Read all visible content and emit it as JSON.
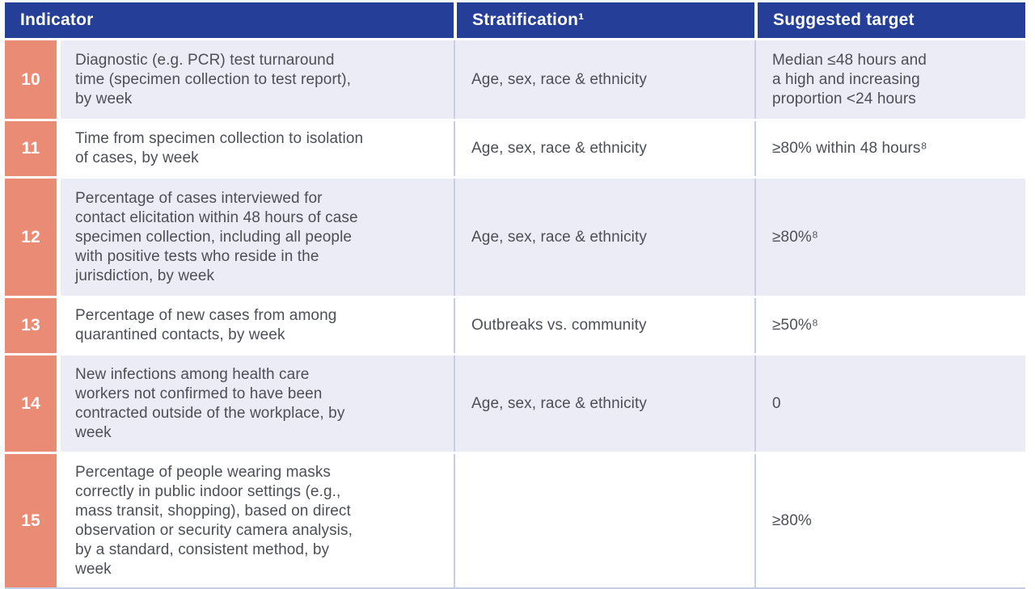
{
  "table": {
    "columns": [
      {
        "label": "Indicator"
      },
      {
        "label": "Stratification¹"
      },
      {
        "label": "Suggested target"
      }
    ],
    "rows": [
      {
        "number": "10",
        "indicator": "Diagnostic (e.g. PCR) test turnaround time (specimen collection to test report), by week",
        "stratification": "Age, sex, race & ethnicity",
        "target": "Median ≤48 hours and a high and increasing proportion <24 hours"
      },
      {
        "number": "11",
        "indicator": "Time from specimen collection to isolation of cases, by week",
        "stratification": "Age, sex, race & ethnicity",
        "target": "≥80% within 48 hours⁸"
      },
      {
        "number": "12",
        "indicator": "Percentage of cases interviewed for contact elicitation within 48 hours of case specimen collection, including all people with positive tests who reside in the jurisdiction, by week",
        "stratification": "Age, sex, race & ethnicity",
        "target": "≥80%⁸"
      },
      {
        "number": "13",
        "indicator": "Percentage of new cases from among quarantined contacts, by week",
        "stratification": "Outbreaks vs. community",
        "target": "≥50%⁸"
      },
      {
        "number": "14",
        "indicator": "New infections among health care workers not confirmed to have been contracted outside of the workplace, by week",
        "stratification": "Age, sex, race & ethnicity",
        "target": "0"
      },
      {
        "number": "15",
        "indicator": "Percentage of people wearing masks correctly in public indoor settings (e.g., mass transit, shopping), based on direct observation or security camera analysis, by a standard, consistent method, by week",
        "stratification": "",
        "target": "≥80%"
      }
    ],
    "colors": {
      "header_bg": "#253e97",
      "header_text": "#ffffff",
      "number_bg": "#e98b75",
      "row_alt_bg": "#ebecf6",
      "row_bg": "#ffffff",
      "body_text": "#4d4f57",
      "separator": "#c9cde6",
      "bottom_border": "#c5cde9"
    }
  }
}
